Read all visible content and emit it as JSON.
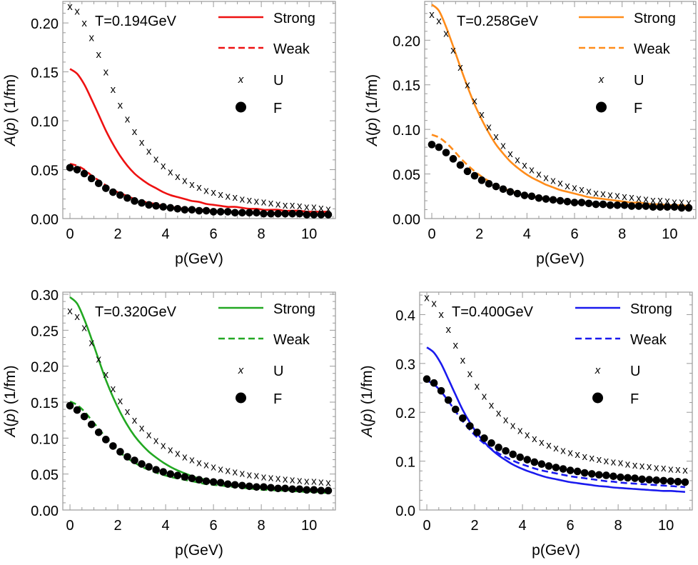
{
  "figure": {
    "x_axis_label": "p(GeV)",
    "y_axis_label_func": "A(",
    "y_axis_label_var": "p",
    "y_axis_label_rest": ") (1/fm)",
    "legend": [
      "Strong",
      "Weak",
      "U",
      "F"
    ]
  },
  "chart_data": [
    {
      "type": "line",
      "title": "T=0.194GeV",
      "xlabel": "p(GeV)",
      "ylabel": "A(p) (1/fm)",
      "xlim": [
        -0.3,
        11.1
      ],
      "ylim": [
        0.0,
        0.222
      ],
      "xticks": [
        0,
        2,
        4,
        6,
        8,
        10
      ],
      "yticks": [
        0.0,
        0.05,
        0.1,
        0.15,
        0.2
      ],
      "ytick_labels": [
        "0.00",
        "0.05",
        "0.10",
        "0.15",
        "0.20"
      ],
      "color": "#ee1111",
      "legend_position": "top-right",
      "grid": false,
      "x": [
        0,
        0.3,
        0.6,
        0.9,
        1.2,
        1.5,
        1.8,
        2.1,
        2.4,
        2.7,
        3.0,
        3.3,
        3.6,
        3.9,
        4.2,
        4.5,
        4.8,
        5.1,
        5.4,
        5.7,
        6.0,
        6.3,
        6.6,
        6.9,
        7.2,
        7.5,
        7.8,
        8.1,
        8.4,
        8.7,
        9.0,
        9.3,
        9.6,
        9.9,
        10.2,
        10.5,
        10.8
      ],
      "series": [
        {
          "name": "Strong",
          "style": "solid",
          "values": [
            0.153,
            0.148,
            0.137,
            0.122,
            0.106,
            0.09,
            0.076,
            0.064,
            0.054,
            0.046,
            0.04,
            0.035,
            0.031,
            0.027,
            0.024,
            0.022,
            0.02,
            0.018,
            0.017,
            0.015,
            0.014,
            0.013,
            0.012,
            0.012,
            0.011,
            0.01,
            0.01,
            0.009,
            0.009,
            0.009,
            0.008,
            0.008,
            0.008,
            0.007,
            0.007,
            0.007,
            0.007
          ]
        },
        {
          "name": "Weak",
          "style": "dashed",
          "values": [
            0.056,
            0.054,
            0.05,
            0.044,
            0.039,
            0.034,
            0.029,
            0.026,
            0.023,
            0.02,
            0.018,
            0.016,
            0.015,
            0.013,
            0.012,
            0.011,
            0.01,
            0.01,
            0.009,
            0.009,
            0.008,
            0.008,
            0.007,
            0.007,
            0.007,
            0.007,
            0.006,
            0.006,
            0.006,
            0.006,
            0.006,
            0.005,
            0.005,
            0.005,
            0.005,
            0.005,
            0.005
          ]
        },
        {
          "name": "U",
          "style": "x-marker",
          "values": [
            0.217,
            0.212,
            0.2,
            0.185,
            0.168,
            0.15,
            0.132,
            0.116,
            0.102,
            0.089,
            0.078,
            0.069,
            0.061,
            0.054,
            0.048,
            0.043,
            0.039,
            0.035,
            0.032,
            0.029,
            0.027,
            0.025,
            0.023,
            0.022,
            0.02,
            0.019,
            0.018,
            0.017,
            0.016,
            0.015,
            0.014,
            0.014,
            0.013,
            0.012,
            0.012,
            0.011,
            0.01
          ]
        },
        {
          "name": "F",
          "style": "dot-marker",
          "values": [
            0.052,
            0.05,
            0.046,
            0.041,
            0.036,
            0.031,
            0.027,
            0.024,
            0.021,
            0.018,
            0.016,
            0.014,
            0.013,
            0.012,
            0.011,
            0.01,
            0.009,
            0.009,
            0.008,
            0.008,
            0.007,
            0.007,
            0.007,
            0.006,
            0.006,
            0.006,
            0.006,
            0.005,
            0.005,
            0.005,
            0.005,
            0.005,
            0.005,
            0.004,
            0.004,
            0.004,
            0.004
          ]
        }
      ]
    },
    {
      "type": "line",
      "title": "T=0.258GeV",
      "xlabel": "p(GeV)",
      "ylabel": "A(p) (1/fm)",
      "xlim": [
        -0.3,
        11.1
      ],
      "ylim": [
        0.0,
        0.2435
      ],
      "xticks": [
        0,
        2,
        4,
        6,
        8,
        10
      ],
      "yticks": [
        0.0,
        0.05,
        0.1,
        0.15,
        0.2
      ],
      "ytick_labels": [
        "0.00",
        "0.05",
        "0.10",
        "0.15",
        "0.20"
      ],
      "color": "#ff8c1a",
      "legend_position": "top-right",
      "grid": false,
      "x": [
        0,
        0.3,
        0.6,
        0.9,
        1.2,
        1.5,
        1.8,
        2.1,
        2.4,
        2.7,
        3.0,
        3.3,
        3.6,
        3.9,
        4.2,
        4.5,
        4.8,
        5.1,
        5.4,
        5.7,
        6.0,
        6.3,
        6.6,
        6.9,
        7.2,
        7.5,
        7.8,
        8.1,
        8.4,
        8.7,
        9.0,
        9.3,
        9.6,
        9.9,
        10.2,
        10.5,
        10.8
      ],
      "series": [
        {
          "name": "Strong",
          "style": "solid",
          "values": [
            0.24,
            0.233,
            0.215,
            0.193,
            0.17,
            0.148,
            0.128,
            0.111,
            0.096,
            0.083,
            0.073,
            0.064,
            0.057,
            0.051,
            0.046,
            0.042,
            0.038,
            0.035,
            0.032,
            0.03,
            0.028,
            0.026,
            0.024,
            0.023,
            0.022,
            0.021,
            0.02,
            0.019,
            0.018,
            0.018,
            0.017,
            0.016,
            0.016,
            0.015,
            0.015,
            0.015,
            0.014
          ]
        },
        {
          "name": "Weak",
          "style": "dashed",
          "values": [
            0.094,
            0.091,
            0.085,
            0.077,
            0.068,
            0.06,
            0.053,
            0.047,
            0.042,
            0.038,
            0.034,
            0.031,
            0.029,
            0.027,
            0.025,
            0.024,
            0.022,
            0.021,
            0.02,
            0.019,
            0.018,
            0.018,
            0.017,
            0.016,
            0.016,
            0.015,
            0.015,
            0.014,
            0.014,
            0.014,
            0.013,
            0.013,
            0.013,
            0.013,
            0.012,
            0.012,
            0.012
          ]
        },
        {
          "name": "U",
          "style": "x-marker",
          "values": [
            0.229,
            0.222,
            0.208,
            0.189,
            0.17,
            0.15,
            0.132,
            0.117,
            0.103,
            0.092,
            0.082,
            0.073,
            0.066,
            0.06,
            0.055,
            0.05,
            0.046,
            0.043,
            0.04,
            0.037,
            0.035,
            0.033,
            0.031,
            0.029,
            0.028,
            0.027,
            0.026,
            0.025,
            0.024,
            0.023,
            0.022,
            0.021,
            0.021,
            0.02,
            0.019,
            0.019,
            0.018
          ]
        },
        {
          "name": "F",
          "style": "dot-marker",
          "values": [
            0.083,
            0.08,
            0.074,
            0.067,
            0.06,
            0.053,
            0.048,
            0.043,
            0.039,
            0.036,
            0.033,
            0.03,
            0.028,
            0.026,
            0.025,
            0.023,
            0.022,
            0.021,
            0.02,
            0.019,
            0.018,
            0.018,
            0.017,
            0.016,
            0.016,
            0.015,
            0.015,
            0.015,
            0.014,
            0.014,
            0.014,
            0.013,
            0.013,
            0.013,
            0.013,
            0.012,
            0.012
          ]
        }
      ]
    },
    {
      "type": "line",
      "title": "T=0.320GeV",
      "xlabel": "p(GeV)",
      "ylabel": "A(p) (1/fm)",
      "xlim": [
        -0.3,
        11.1
      ],
      "ylim": [
        0.0,
        0.303
      ],
      "xticks": [
        0,
        2,
        4,
        6,
        8,
        10
      ],
      "yticks": [
        0.0,
        0.05,
        0.1,
        0.15,
        0.2,
        0.25,
        0.3
      ],
      "ytick_labels": [
        "0.00",
        "0.05",
        "0.10",
        "0.15",
        "0.20",
        "0.25",
        "0.30"
      ],
      "color": "#22a822",
      "legend_position": "top-right",
      "grid": false,
      "x": [
        0,
        0.3,
        0.6,
        0.9,
        1.2,
        1.5,
        1.8,
        2.1,
        2.4,
        2.7,
        3.0,
        3.3,
        3.6,
        3.9,
        4.2,
        4.5,
        4.8,
        5.1,
        5.4,
        5.7,
        6.0,
        6.3,
        6.6,
        6.9,
        7.2,
        7.5,
        7.8,
        8.1,
        8.4,
        8.7,
        9.0,
        9.3,
        9.6,
        9.9,
        10.2,
        10.5,
        10.8
      ],
      "series": [
        {
          "name": "Strong",
          "style": "solid",
          "values": [
            0.296,
            0.287,
            0.265,
            0.238,
            0.209,
            0.181,
            0.157,
            0.136,
            0.118,
            0.103,
            0.091,
            0.081,
            0.073,
            0.066,
            0.06,
            0.055,
            0.051,
            0.047,
            0.044,
            0.042,
            0.039,
            0.037,
            0.036,
            0.034,
            0.033,
            0.032,
            0.031,
            0.03,
            0.029,
            0.028,
            0.028,
            0.027,
            0.027,
            0.026,
            0.026,
            0.025,
            0.025
          ]
        },
        {
          "name": "Weak",
          "style": "dashed",
          "values": [
            0.151,
            0.146,
            0.137,
            0.125,
            0.113,
            0.101,
            0.09,
            0.08,
            0.072,
            0.066,
            0.06,
            0.056,
            0.052,
            0.049,
            0.046,
            0.044,
            0.042,
            0.04,
            0.038,
            0.036,
            0.035,
            0.034,
            0.033,
            0.032,
            0.031,
            0.03,
            0.029,
            0.028,
            0.028,
            0.027,
            0.027,
            0.026,
            0.026,
            0.025,
            0.025,
            0.024,
            0.024
          ]
        },
        {
          "name": "U",
          "style": "x-marker",
          "values": [
            0.277,
            0.269,
            0.254,
            0.233,
            0.21,
            0.189,
            0.169,
            0.152,
            0.137,
            0.125,
            0.114,
            0.105,
            0.097,
            0.09,
            0.084,
            0.079,
            0.074,
            0.07,
            0.066,
            0.063,
            0.06,
            0.057,
            0.055,
            0.053,
            0.051,
            0.049,
            0.048,
            0.046,
            0.045,
            0.044,
            0.043,
            0.042,
            0.041,
            0.04,
            0.04,
            0.039,
            0.038
          ]
        },
        {
          "name": "F",
          "style": "dot-marker",
          "values": [
            0.145,
            0.139,
            0.13,
            0.119,
            0.108,
            0.098,
            0.089,
            0.081,
            0.074,
            0.069,
            0.064,
            0.06,
            0.056,
            0.053,
            0.05,
            0.048,
            0.046,
            0.044,
            0.042,
            0.04,
            0.039,
            0.038,
            0.036,
            0.035,
            0.034,
            0.033,
            0.032,
            0.032,
            0.031,
            0.03,
            0.03,
            0.029,
            0.029,
            0.028,
            0.028,
            0.027,
            0.027
          ]
        }
      ]
    },
    {
      "type": "line",
      "title": "T=0.400GeV",
      "xlabel": "p(GeV)",
      "ylabel": "A(p) (1/fm)",
      "xlim": [
        -0.3,
        11.1
      ],
      "ylim": [
        0.0,
        0.446
      ],
      "xticks": [
        0,
        2,
        4,
        6,
        8,
        10
      ],
      "yticks": [
        0.0,
        0.1,
        0.2,
        0.3,
        0.4
      ],
      "ytick_labels": [
        "0.0",
        "0.1",
        "0.2",
        "0.3",
        "0.4"
      ],
      "color": "#1a1aee",
      "legend_position": "top-right",
      "grid": false,
      "x": [
        0,
        0.3,
        0.6,
        0.9,
        1.2,
        1.5,
        1.8,
        2.1,
        2.4,
        2.7,
        3.0,
        3.3,
        3.6,
        3.9,
        4.2,
        4.5,
        4.8,
        5.1,
        5.4,
        5.7,
        6.0,
        6.3,
        6.6,
        6.9,
        7.2,
        7.5,
        7.8,
        8.1,
        8.4,
        8.7,
        9.0,
        9.3,
        9.6,
        9.9,
        10.2,
        10.5,
        10.8
      ],
      "series": [
        {
          "name": "Strong",
          "style": "solid",
          "values": [
            0.333,
            0.322,
            0.299,
            0.268,
            0.236,
            0.205,
            0.179,
            0.157,
            0.139,
            0.124,
            0.112,
            0.102,
            0.093,
            0.086,
            0.08,
            0.075,
            0.07,
            0.066,
            0.063,
            0.06,
            0.057,
            0.055,
            0.053,
            0.051,
            0.049,
            0.048,
            0.046,
            0.045,
            0.044,
            0.043,
            0.042,
            0.041,
            0.04,
            0.039,
            0.039,
            0.038,
            0.037
          ]
        },
        {
          "name": "Weak",
          "style": "dashed",
          "values": [
            0.265,
            0.257,
            0.242,
            0.223,
            0.202,
            0.182,
            0.164,
            0.149,
            0.136,
            0.125,
            0.116,
            0.108,
            0.101,
            0.095,
            0.09,
            0.085,
            0.081,
            0.078,
            0.075,
            0.072,
            0.069,
            0.067,
            0.065,
            0.063,
            0.061,
            0.059,
            0.058,
            0.056,
            0.055,
            0.054,
            0.053,
            0.052,
            0.051,
            0.05,
            0.049,
            0.048,
            0.047
          ]
        },
        {
          "name": "U",
          "style": "x-marker",
          "values": [
            0.435,
            0.423,
            0.401,
            0.37,
            0.338,
            0.307,
            0.279,
            0.254,
            0.233,
            0.215,
            0.199,
            0.185,
            0.173,
            0.163,
            0.154,
            0.146,
            0.139,
            0.133,
            0.127,
            0.122,
            0.118,
            0.114,
            0.11,
            0.107,
            0.104,
            0.101,
            0.099,
            0.097,
            0.094,
            0.092,
            0.091,
            0.089,
            0.087,
            0.086,
            0.084,
            0.083,
            0.082
          ]
        },
        {
          "name": "F",
          "style": "dot-marker",
          "values": [
            0.268,
            0.26,
            0.244,
            0.225,
            0.206,
            0.188,
            0.172,
            0.159,
            0.147,
            0.137,
            0.128,
            0.121,
            0.114,
            0.108,
            0.103,
            0.098,
            0.094,
            0.09,
            0.087,
            0.084,
            0.081,
            0.079,
            0.076,
            0.074,
            0.072,
            0.071,
            0.069,
            0.067,
            0.066,
            0.065,
            0.063,
            0.062,
            0.061,
            0.06,
            0.059,
            0.058,
            0.057
          ]
        }
      ]
    }
  ]
}
